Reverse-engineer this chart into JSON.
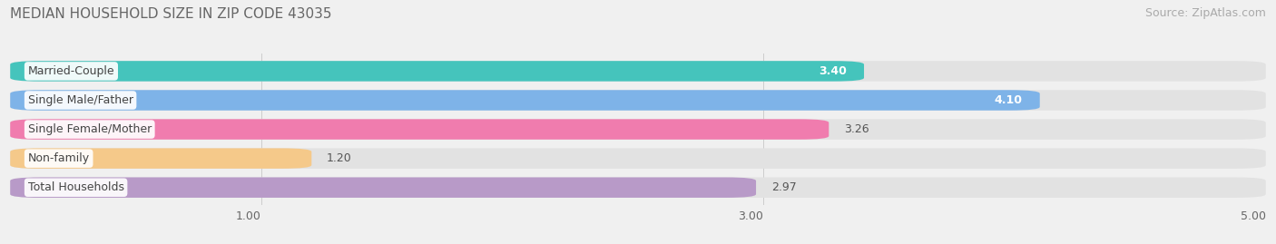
{
  "title": "MEDIAN HOUSEHOLD SIZE IN ZIP CODE 43035",
  "source": "Source: ZipAtlas.com",
  "categories": [
    "Married-Couple",
    "Single Male/Father",
    "Single Female/Mother",
    "Non-family",
    "Total Households"
  ],
  "values": [
    3.4,
    4.1,
    3.26,
    1.2,
    2.97
  ],
  "bar_colors": [
    "#45C4BC",
    "#7EB3E8",
    "#F07CAE",
    "#F5C98A",
    "#B89AC8"
  ],
  "xlim": [
    0,
    5.0
  ],
  "xticks": [
    1.0,
    3.0,
    5.0
  ],
  "background_color": "#f0f0f0",
  "bar_background_color": "#e2e2e2",
  "title_fontsize": 11,
  "source_fontsize": 9,
  "label_fontsize": 9,
  "value_fontsize": 9,
  "value_inside_threshold": 2.5,
  "value_colors_inside": [
    "white",
    "white",
    "#555555",
    "#555555",
    "#555555"
  ],
  "value_ha_inside": [
    "right",
    "right",
    "left",
    "left",
    "left"
  ]
}
